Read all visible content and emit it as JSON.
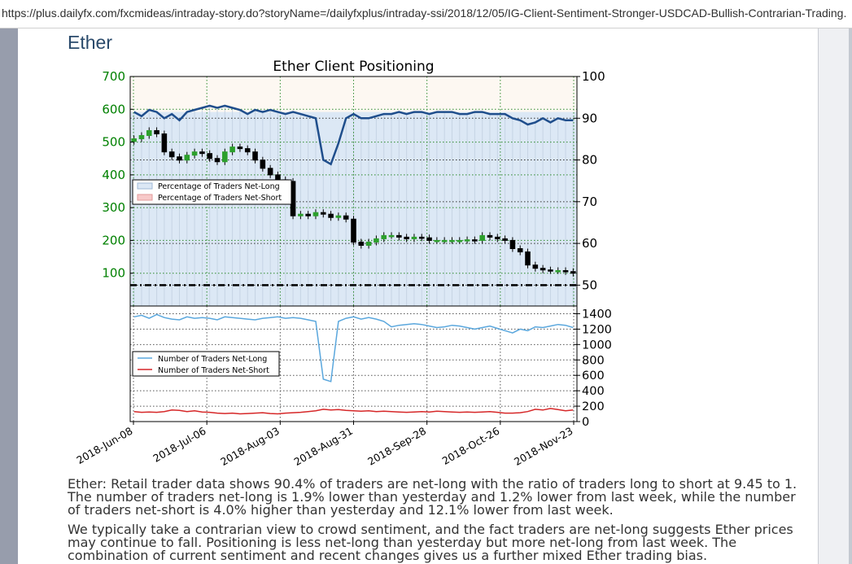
{
  "browser": {
    "url": "https://plus.dailyfx.com/fxcmideas/intraday-story.do?storyName=/dailyfxplus/intraday-ssi/2018/12/05/IG-Client-Sentiment-Stronger-USDCAD-Bullish-Contrarian-Trading."
  },
  "article": {
    "heading": "Ether",
    "paragraph1": "Ether: Retail trader data shows 90.4% of traders are net-long with the ratio of traders long to short at 9.45 to 1. The number of traders net-long is 1.9% lower than yesterday and 1.2% lower from last week, while the number of traders net-short is 4.0% higher than yesterday and 12.1% lower from last week.",
    "paragraph2": "We typically take a contrarian view to crowd sentiment, and the fact traders are net-long suggests Ether prices may continue to fall. Positioning is less net-long than yesterday but more net-long from last week. The combination of current sentiment and recent changes gives us a further mixed Ether trading bias."
  },
  "colors": {
    "price_axis": "#008000",
    "net_long_line": "#1f4e8c",
    "net_long_count": "#5aa7dd",
    "net_short_count": "#d62728",
    "long_fill": "#dce8f5",
    "short_fill": "#f7c9c9",
    "candle_up": "#2ca02c",
    "candle_down": "#000000"
  },
  "chart_data": [
    {
      "type": "candlestick-with-line",
      "title": "Ether Client Positioning",
      "x_ticks": [
        "2018-Jun-08",
        "2018-Jul-06",
        "2018-Aug-03",
        "2018-Aug-31",
        "2018-Sep-28",
        "2018-Oct-26",
        "2018-Nov-23"
      ],
      "left_axis": {
        "ticks": [
          100,
          200,
          300,
          400,
          500,
          600,
          700
        ],
        "range": [
          0,
          700
        ]
      },
      "right_axis": {
        "ticks": [
          50,
          60,
          70,
          80,
          90,
          100
        ],
        "range": [
          45,
          100
        ]
      },
      "legend": {
        "placement": "mid-left",
        "entries": [
          "Percentage of Traders Net-Long",
          "Percentage of Traders Net-Short"
        ]
      },
      "reference_line_right": 50,
      "price_series": [
        510,
        520,
        535,
        525,
        470,
        455,
        445,
        460,
        470,
        465,
        450,
        440,
        470,
        485,
        480,
        470,
        445,
        420,
        400,
        385,
        380,
        275,
        280,
        275,
        285,
        280,
        270,
        275,
        265,
        195,
        185,
        195,
        205,
        215,
        215,
        210,
        205,
        210,
        208,
        200,
        200,
        200,
        200,
        200,
        202,
        200,
        215,
        210,
        205,
        200,
        175,
        165,
        125,
        115,
        110,
        108,
        108,
        105,
        100
      ],
      "net_long_pct": [
        91.5,
        90.5,
        92.0,
        91.5,
        90.0,
        91.0,
        89.5,
        91.5,
        92.0,
        92.5,
        93.0,
        92.5,
        93.0,
        92.5,
        92.0,
        91.0,
        92.0,
        91.5,
        92.0,
        91.5,
        91.0,
        91.5,
        91.0,
        90.5,
        90.0,
        80.0,
        79.0,
        84.0,
        90.0,
        91.0,
        90.0,
        90.0,
        90.5,
        91.0,
        91.0,
        91.5,
        91.0,
        91.5,
        91.5,
        91.0,
        91.5,
        91.5,
        91.5,
        91.0,
        91.0,
        91.5,
        91.5,
        91.0,
        91.0,
        91.0,
        90.0,
        89.5,
        88.5,
        89.0,
        90.0,
        89.0,
        90.0,
        89.5,
        89.5
      ]
    },
    {
      "type": "line",
      "y_ticks": [
        0,
        200,
        400,
        600,
        800,
        1000,
        1200,
        1400
      ],
      "ylim": [
        0,
        1500
      ],
      "legend": {
        "placement": "mid-left",
        "entries": [
          "Number of Traders Net-Long",
          "Number of Traders Net-Short"
        ]
      },
      "series": [
        {
          "name": "Number of Traders Net-Long",
          "values": [
            1360,
            1380,
            1340,
            1390,
            1350,
            1330,
            1320,
            1360,
            1340,
            1350,
            1340,
            1320,
            1360,
            1350,
            1340,
            1330,
            1320,
            1340,
            1350,
            1360,
            1340,
            1350,
            1340,
            1320,
            1300,
            550,
            520,
            1300,
            1340,
            1360,
            1330,
            1350,
            1330,
            1300,
            1230,
            1250,
            1260,
            1270,
            1260,
            1240,
            1220,
            1230,
            1250,
            1240,
            1220,
            1200,
            1220,
            1240,
            1210,
            1180,
            1150,
            1200,
            1180,
            1230,
            1220,
            1240,
            1260,
            1250,
            1220
          ]
        },
        {
          "name": "Number of Traders Net-Short",
          "values": [
            130,
            120,
            125,
            120,
            130,
            150,
            145,
            130,
            140,
            125,
            120,
            110,
            105,
            110,
            100,
            105,
            110,
            115,
            105,
            100,
            110,
            115,
            120,
            130,
            140,
            160,
            150,
            155,
            145,
            140,
            135,
            140,
            130,
            135,
            130,
            125,
            120,
            125,
            130,
            125,
            135,
            130,
            125,
            120,
            125,
            120,
            125,
            130,
            120,
            110,
            110,
            115,
            130,
            160,
            150,
            170,
            155,
            140,
            150
          ]
        }
      ]
    }
  ]
}
